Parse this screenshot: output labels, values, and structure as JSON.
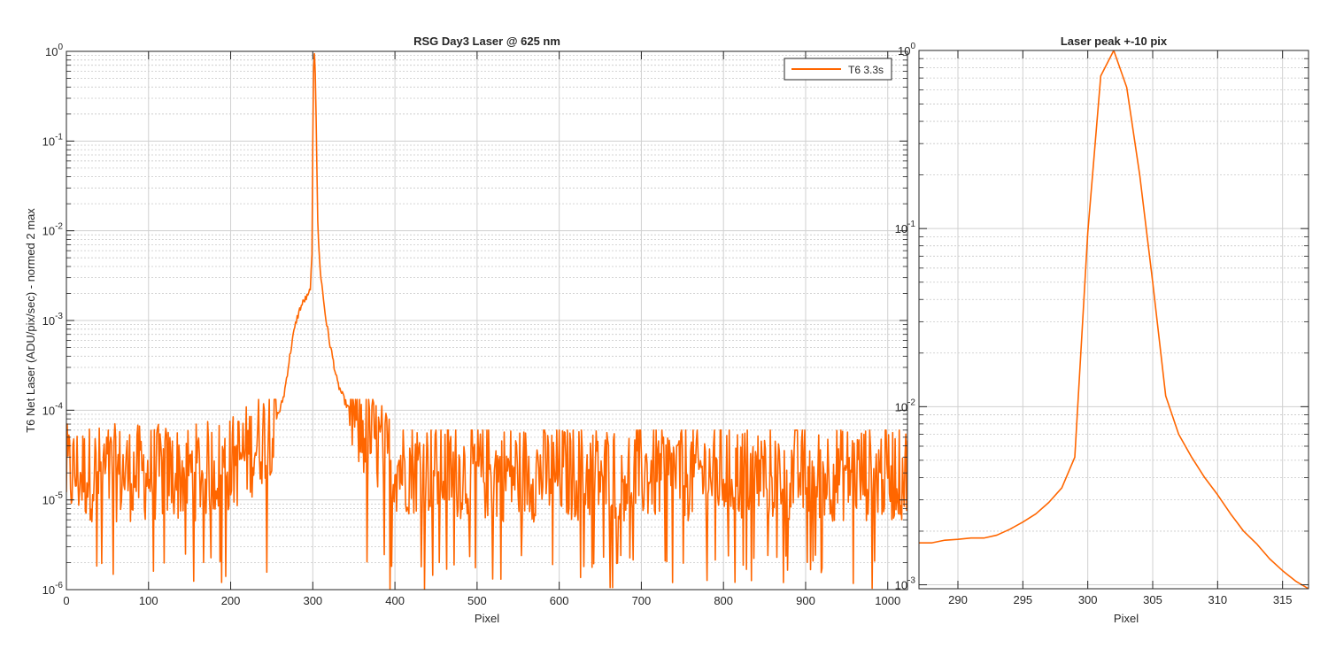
{
  "chart_data": [
    {
      "type": "line",
      "title": "RSG  Day3 Laser @ 625 nm",
      "xlabel": "Pixel",
      "ylabel": "T6 Net Laser (ADU/pix/sec) - normed 2 max",
      "xlim": [
        0,
        1024
      ],
      "ylim": [
        1e-06,
        1
      ],
      "yscale": "log",
      "grid": "on",
      "legend_position": "top-right",
      "xticks": [
        "0",
        "100",
        "200",
        "300",
        "400",
        "500",
        "600",
        "700",
        "800",
        "900",
        "1000"
      ],
      "yticks": [
        {
          "base": "10",
          "exp": "-6"
        },
        {
          "base": "10",
          "exp": "-5"
        },
        {
          "base": "10",
          "exp": "-4"
        },
        {
          "base": "10",
          "exp": "-3"
        },
        {
          "base": "10",
          "exp": "-2"
        },
        {
          "base": "10",
          "exp": "-1"
        },
        {
          "base": "10",
          "exp": "0"
        }
      ],
      "series": [
        {
          "name": "T6 3.3s",
          "color": "#ff6600",
          "style": "noisy-floor-with-peak",
          "noise_floor": [
            1e-06,
            6e-05
          ],
          "x": [
            0,
            50,
            100,
            150,
            200,
            230,
            250,
            260,
            265,
            270,
            275,
            280,
            285,
            290,
            295,
            297,
            299,
            300,
            301,
            302,
            303,
            304,
            305,
            306,
            308,
            310,
            315,
            320,
            325,
            330,
            340,
            350,
            360,
            380,
            400,
            500,
            600,
            700,
            800,
            900,
            1000,
            1024
          ],
          "y": [
            2e-05,
            2e-05,
            2e-05,
            2e-05,
            2.5e-05,
            4e-05,
            7e-05,
            0.0001,
            0.00015,
            0.0003,
            0.0006,
            0.001,
            0.0014,
            0.0017,
            0.0019,
            0.0024,
            0.005,
            0.1,
            0.7,
            1.0,
            0.6,
            0.2,
            0.05,
            0.012,
            0.005,
            0.003,
            0.0012,
            0.0006,
            0.00035,
            0.0002,
            0.00012,
            8e-05,
            6e-05,
            4e-05,
            2.5e-05,
            2e-05,
            2e-05,
            2e-05,
            2e-05,
            2e-05,
            2e-05,
            2e-05
          ]
        }
      ]
    },
    {
      "type": "line",
      "title": "Laser peak +-10 pix",
      "xlabel": "Pixel",
      "ylabel": "",
      "xlim": [
        287,
        317
      ],
      "ylim": [
        0.00095,
        1
      ],
      "yscale": "log",
      "grid": "on",
      "xticks": [
        "290",
        "295",
        "300",
        "305",
        "310",
        "315"
      ],
      "yticks": [
        {
          "base": "10",
          "exp": "-3"
        },
        {
          "base": "10",
          "exp": "-2"
        },
        {
          "base": "10",
          "exp": "-1"
        },
        {
          "base": "10",
          "exp": "0"
        }
      ],
      "series": [
        {
          "color": "#ff6600",
          "x": [
            287,
            288,
            289,
            290,
            291,
            292,
            293,
            294,
            295,
            296,
            297,
            298,
            299,
            300,
            301,
            302,
            303,
            304,
            305,
            306,
            307,
            308,
            309,
            310,
            311,
            312,
            313,
            314,
            315,
            316,
            317
          ],
          "y": [
            0.00172,
            0.00172,
            0.00178,
            0.0018,
            0.00183,
            0.00183,
            0.0019,
            0.00205,
            0.00225,
            0.0025,
            0.0029,
            0.0035,
            0.0052,
            0.095,
            0.72,
            1.0,
            0.62,
            0.2,
            0.05,
            0.0115,
            0.007,
            0.0052,
            0.004,
            0.0032,
            0.0025,
            0.002,
            0.0017,
            0.0014,
            0.0012,
            0.00105,
            0.00095
          ]
        }
      ]
    }
  ]
}
